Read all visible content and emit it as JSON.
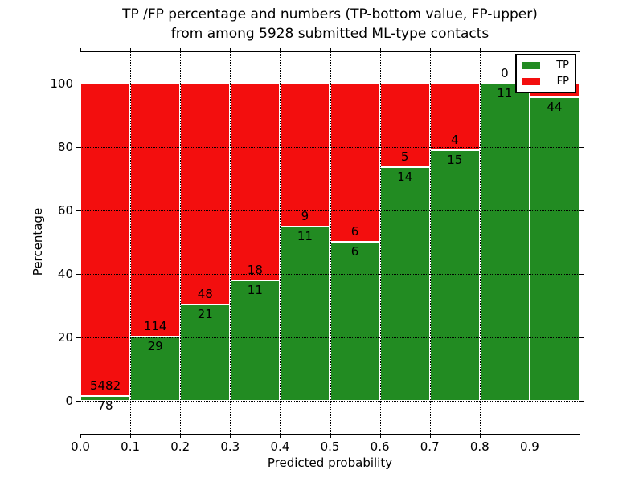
{
  "colors": {
    "tp_green": "#228b22",
    "fp_red": "#f30e0e",
    "grid": "#000000",
    "background": "#ffffff",
    "text": "#000000"
  },
  "title": {
    "line1": "TP /FP percentage and numbers (TP-bottom value, FP-upper)",
    "line2": "from among 5928 submitted ML-type contacts"
  },
  "axes": {
    "xlabel": "Predicted probability",
    "ylabel": "Percentage"
  },
  "legend": {
    "position": "upper right",
    "items": [
      {
        "label": "TP",
        "color": "#228b22"
      },
      {
        "label": "FP",
        "color": "#f30e0e"
      }
    ]
  },
  "chart_data": {
    "type": "bar",
    "stacked": true,
    "normalized_to_percent": true,
    "title": "TP /FP percentage and numbers (TP-bottom value, FP-upper) from among 5928 submitted ML-type contacts",
    "xlabel": "Predicted probability",
    "ylabel": "Percentage",
    "total_contacts": 5928,
    "grid": "dotted",
    "legend_position": "upper right",
    "xlim": [
      0.0,
      1.0
    ],
    "ylim": [
      -10.4,
      109.8
    ],
    "bin_width": 0.1,
    "bin_starts": [
      0.0,
      0.1,
      0.2,
      0.3,
      0.4,
      0.5,
      0.6,
      0.7,
      0.8,
      0.9
    ],
    "xtick_labels": [
      "0.0",
      "0.1",
      "0.2",
      "0.3",
      "0.4",
      "0.5",
      "0.6",
      "0.7",
      "0.8",
      "0.9"
    ],
    "ytick_values": [
      0,
      20,
      40,
      60,
      80,
      100
    ],
    "ytick_labels": [
      "0",
      "20",
      "40",
      "60",
      "80",
      "100"
    ],
    "series": [
      {
        "name": "TP",
        "color": "#228b22",
        "counts": [
          78,
          29,
          21,
          11,
          11,
          6,
          14,
          15,
          11,
          44
        ]
      },
      {
        "name": "FP",
        "color": "#f30e0e",
        "counts": [
          5482,
          114,
          48,
          18,
          9,
          6,
          5,
          4,
          0,
          2
        ]
      }
    ],
    "bar_labels": {
      "tp": [
        "78",
        "29",
        "21",
        "11",
        "11",
        "6",
        "14",
        "15",
        "11",
        "44"
      ],
      "fp": [
        "5482",
        "114",
        "48",
        "18",
        "9",
        "6",
        "5",
        "4",
        "0",
        ""
      ]
    }
  }
}
